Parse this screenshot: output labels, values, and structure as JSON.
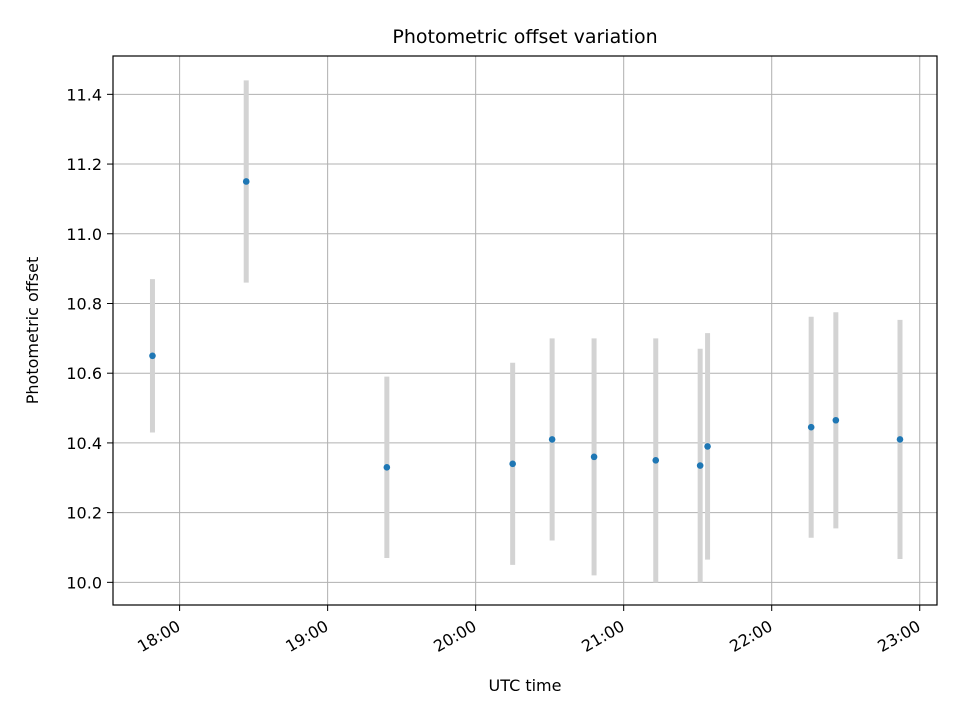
{
  "chart_data": {
    "type": "scatter",
    "title": "Photometric offset variation",
    "xlabel": "UTC time",
    "ylabel": "Photometric offset",
    "x_is_time": true,
    "xlim": [
      "17:33",
      "23:07"
    ],
    "ylim": [
      9.935,
      11.51
    ],
    "x_ticks": [
      "18:00",
      "19:00",
      "20:00",
      "21:00",
      "22:00",
      "23:00"
    ],
    "y_ticks": [
      "10.0",
      "10.2",
      "10.4",
      "10.6",
      "10.8",
      "11.0",
      "11.2",
      "11.4"
    ],
    "grid": true,
    "marker_color": "#1f77b4",
    "errorbar_color": "#d3d3d3",
    "points": [
      {
        "time": "17:49",
        "y": 10.65,
        "err": 0.22
      },
      {
        "time": "18:27",
        "y": 11.15,
        "err": 0.29
      },
      {
        "time": "19:24",
        "y": 10.33,
        "err": 0.26
      },
      {
        "time": "20:15",
        "y": 10.34,
        "err": 0.29
      },
      {
        "time": "20:31",
        "y": 10.41,
        "err": 0.29
      },
      {
        "time": "20:48",
        "y": 10.36,
        "err": 0.34
      },
      {
        "time": "21:13",
        "y": 10.35,
        "err": 0.35
      },
      {
        "time": "21:31",
        "y": 10.335,
        "err": 0.335
      },
      {
        "time": "21:34",
        "y": 10.39,
        "err": 0.325
      },
      {
        "time": "22:16",
        "y": 10.445,
        "err": 0.317
      },
      {
        "time": "22:26",
        "y": 10.465,
        "err": 0.31
      },
      {
        "time": "22:52",
        "y": 10.41,
        "err": 0.343
      }
    ]
  }
}
